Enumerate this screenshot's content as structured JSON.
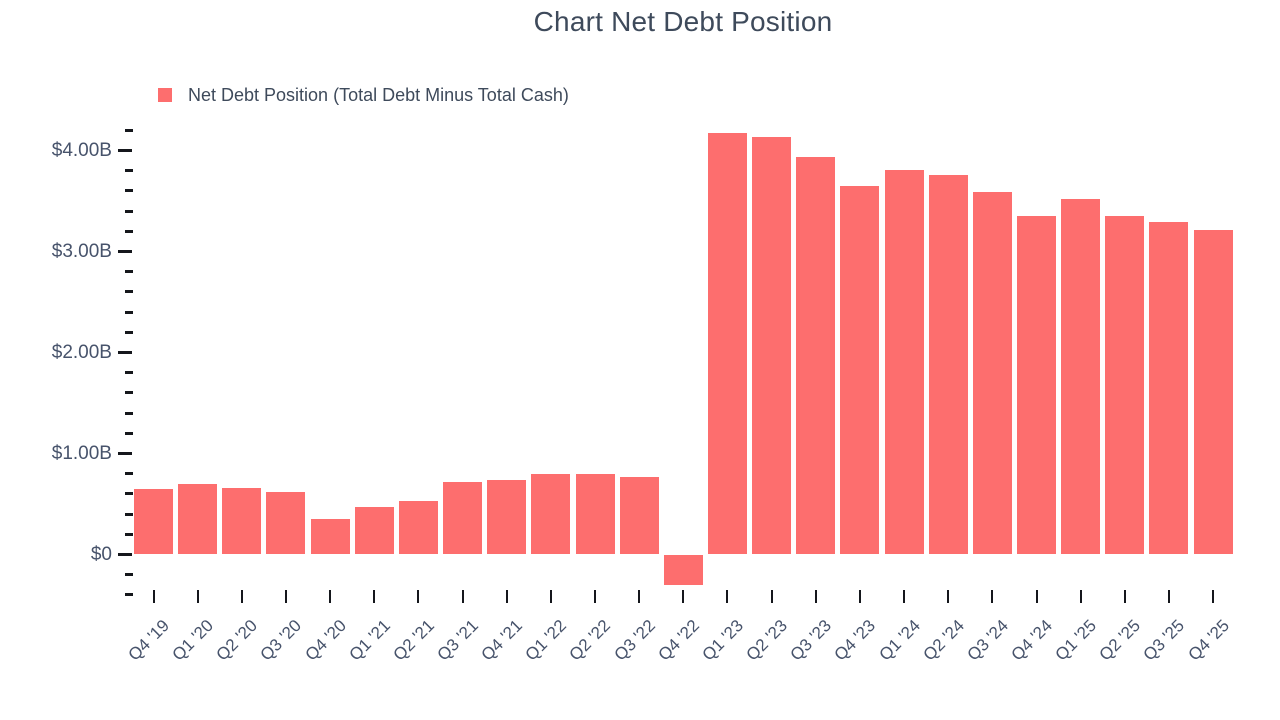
{
  "title": "Chart Net Debt Position",
  "legend": {
    "label": "Net Debt Position (Total Debt Minus Total Cash)",
    "swatch_color": "#fd6e6e"
  },
  "colors": {
    "bar": "#fd6e6e",
    "title_text": "#3e4a5b",
    "axis_text": "#47536b",
    "tick": "#15171c",
    "background": "#ffffff"
  },
  "chart_data": {
    "type": "bar",
    "title": "Chart Net Debt Position",
    "series_name": "Net Debt Position (Total Debt Minus Total Cash)",
    "unit": "USD billions",
    "categories": [
      "Q4 '19",
      "Q1 '20",
      "Q2 '20",
      "Q3 '20",
      "Q4 '20",
      "Q1 '21",
      "Q2 '21",
      "Q3 '21",
      "Q4 '21",
      "Q1 '22",
      "Q2 '22",
      "Q3 '22",
      "Q4 '22",
      "Q1 '23",
      "Q2 '23",
      "Q3 '23",
      "Q4 '23",
      "Q1 '24",
      "Q2 '24",
      "Q3 '24",
      "Q4 '24",
      "Q1 '25",
      "Q2 '25",
      "Q3 '25",
      "Q4 '25"
    ],
    "values": [
      0.65,
      0.7,
      0.66,
      0.62,
      0.35,
      0.47,
      0.53,
      0.72,
      0.74,
      0.8,
      0.8,
      0.77,
      -0.3,
      4.17,
      4.13,
      3.94,
      3.65,
      3.81,
      3.76,
      3.59,
      3.35,
      3.52,
      3.35,
      3.29,
      3.21
    ],
    "y_ticks": [
      {
        "value": 0,
        "label": "$0"
      },
      {
        "value": 1,
        "label": "$1.00B"
      },
      {
        "value": 2,
        "label": "$2.00B"
      },
      {
        "value": 3,
        "label": "$3.00B"
      },
      {
        "value": 4,
        "label": "$4.00B"
      }
    ],
    "y_minor_step": 0.2,
    "ylim": [
      -0.45,
      4.3
    ],
    "grid": false,
    "legend_position": "top-left",
    "bar_color": "#fd6e6e"
  }
}
